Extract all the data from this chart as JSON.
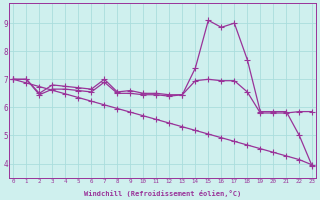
{
  "xlabel": "Windchill (Refroidissement éolien,°C)",
  "ylabel": "",
  "x_ticks": [
    0,
    1,
    2,
    3,
    4,
    5,
    6,
    7,
    8,
    9,
    10,
    11,
    12,
    13,
    14,
    15,
    16,
    17,
    18,
    19,
    20,
    21,
    22,
    23
  ],
  "ylim": [
    3.5,
    9.7
  ],
  "xlim": [
    -0.3,
    23.3
  ],
  "yticks": [
    4,
    5,
    6,
    7,
    8,
    9
  ],
  "background_color": "#cff0ee",
  "grid_color": "#aadddd",
  "line_color": "#993399",
  "line_width": 0.9,
  "marker": "+",
  "marker_size": 4.0,
  "series1_x": [
    0,
    1,
    2,
    3,
    4,
    5,
    6,
    7,
    8,
    9,
    10,
    11,
    12,
    13,
    14,
    15,
    16,
    17,
    18,
    19,
    20,
    21,
    22,
    23
  ],
  "series1_y": [
    7.0,
    7.0,
    6.5,
    6.8,
    6.75,
    6.7,
    6.65,
    7.0,
    6.55,
    6.6,
    6.5,
    6.5,
    6.45,
    6.45,
    7.4,
    9.1,
    8.85,
    9.0,
    7.7,
    5.85,
    5.85,
    5.85,
    5.0,
    3.9
  ],
  "series2_x": [
    0,
    1,
    2,
    3,
    4,
    5,
    6,
    7,
    8,
    9,
    10,
    11,
    12,
    13,
    14,
    15,
    16,
    17,
    18,
    19,
    20,
    21,
    22,
    23
  ],
  "series2_y": [
    7.0,
    7.0,
    6.45,
    6.65,
    6.65,
    6.6,
    6.55,
    6.9,
    6.5,
    6.5,
    6.45,
    6.45,
    6.4,
    6.45,
    6.95,
    7.0,
    6.95,
    6.95,
    6.55,
    5.8,
    5.8,
    5.8,
    5.85,
    5.85
  ],
  "series3_x": [
    0,
    1,
    2,
    3,
    4,
    5,
    6,
    7,
    8,
    9,
    10,
    11,
    12,
    13,
    14,
    15,
    16,
    17,
    18,
    19,
    20,
    21,
    22,
    23
  ],
  "series3_y": [
    7.0,
    6.87,
    6.74,
    6.61,
    6.48,
    6.35,
    6.22,
    6.09,
    5.96,
    5.83,
    5.7,
    5.57,
    5.44,
    5.31,
    5.18,
    5.05,
    4.92,
    4.79,
    4.66,
    4.53,
    4.4,
    4.27,
    4.14,
    3.95
  ]
}
